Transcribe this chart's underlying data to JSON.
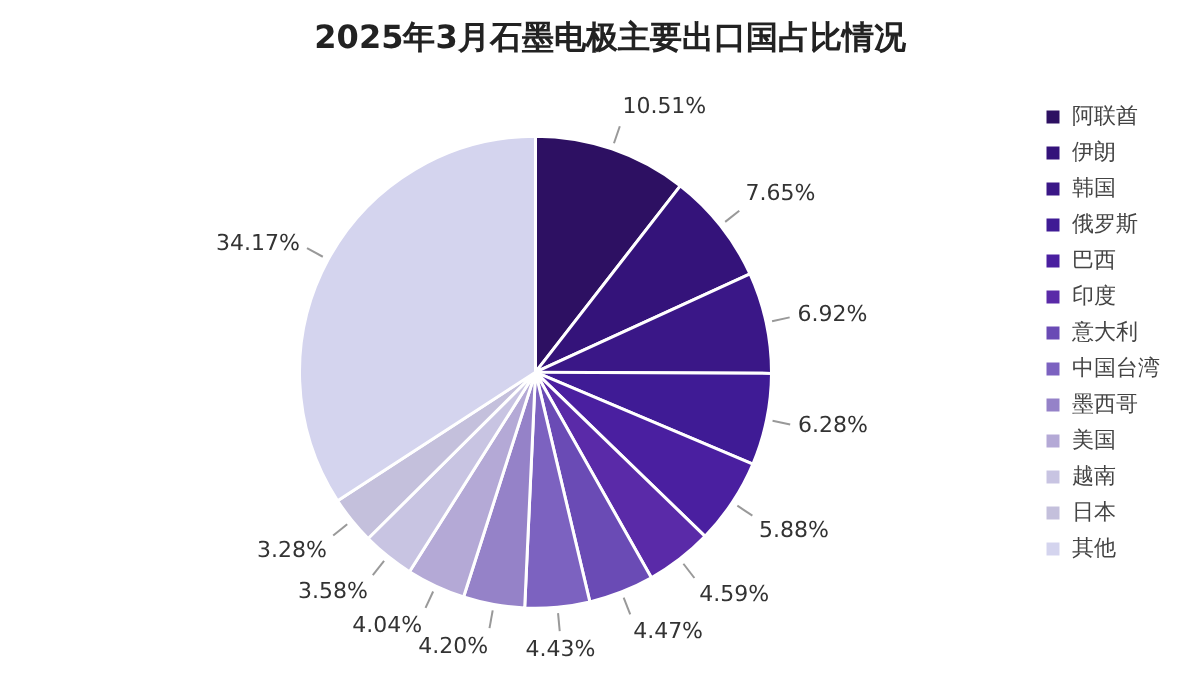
{
  "chart_data": {
    "type": "pie",
    "title": "2025年3月石墨电极主要出口国占比情况",
    "categories": [
      "阿联酋",
      "伊朗",
      "韩国",
      "俄罗斯",
      "巴西",
      "印度",
      "意大利",
      "中国台湾",
      "墨西哥",
      "美国",
      "越南",
      "日本",
      "其他"
    ],
    "values": [
      10.51,
      7.65,
      6.92,
      6.28,
      5.88,
      4.59,
      4.47,
      4.43,
      4.2,
      4.04,
      3.58,
      3.28,
      34.17
    ],
    "value_labels": [
      "10.51%",
      "7.65%",
      "6.92%",
      "6.28%",
      "5.88%",
      "4.59%",
      "4.47%",
      "4.43%",
      "4.20%",
      "4.04%",
      "3.58%",
      "3.28%",
      "34.17%"
    ],
    "colors": [
      "#2d1062",
      "#34137a",
      "#3a1787",
      "#3f1b95",
      "#4a1fa0",
      "#5a2aa8",
      "#6a4bb5",
      "#7c62c0",
      "#9582c8",
      "#b4a9d6",
      "#c8c4e2",
      "#c4c0dc",
      "#d4d4ee"
    ],
    "legend": "right"
  }
}
